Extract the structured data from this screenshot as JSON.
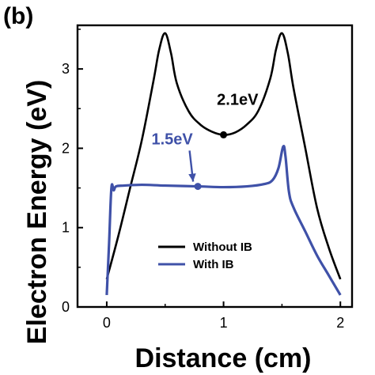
{
  "chart_data": {
    "type": "line",
    "panel_label": "(b)",
    "xlabel": "Distance (cm)",
    "ylabel": "Electron Energy (eV)",
    "xlim": [
      -0.25,
      2.1
    ],
    "ylim": [
      0,
      3.55
    ],
    "xticks": [
      0,
      1,
      2
    ],
    "yticks": [
      0,
      1,
      2,
      3
    ],
    "x_tick_labels": [
      "0",
      "1",
      "2"
    ],
    "y_tick_labels": [
      "0",
      "1",
      "2",
      "3"
    ],
    "grid": false,
    "legend": {
      "placement": "lower-center",
      "entries": [
        "Without IB",
        "With IB"
      ]
    },
    "series": [
      {
        "name": "Without IB",
        "color": "#000000",
        "x": [
          0.0,
          0.1,
          0.2,
          0.3,
          0.4,
          0.45,
          0.5,
          0.55,
          0.6,
          0.7,
          0.8,
          0.9,
          1.0,
          1.1,
          1.2,
          1.3,
          1.4,
          1.45,
          1.5,
          1.55,
          1.6,
          1.7,
          1.8,
          1.9,
          2.0
        ],
        "y": [
          0.35,
          0.9,
          1.5,
          2.1,
          2.85,
          3.25,
          3.45,
          3.2,
          2.82,
          2.47,
          2.3,
          2.21,
          2.17,
          2.2,
          2.3,
          2.48,
          2.88,
          3.25,
          3.45,
          3.2,
          2.75,
          2.0,
          1.25,
          0.75,
          0.35
        ]
      },
      {
        "name": "With IB",
        "color": "#3f51a8",
        "x": [
          0.0,
          0.02,
          0.04,
          0.06,
          0.08,
          0.15,
          0.3,
          0.5,
          0.78,
          1.0,
          1.2,
          1.35,
          1.42,
          1.47,
          1.51,
          1.53,
          1.56,
          1.6,
          1.7,
          1.8,
          1.9,
          2.0
        ],
        "y": [
          0.15,
          0.8,
          1.5,
          1.47,
          1.52,
          1.53,
          1.54,
          1.53,
          1.52,
          1.51,
          1.52,
          1.55,
          1.6,
          1.75,
          2.02,
          1.9,
          1.45,
          1.25,
          0.95,
          0.65,
          0.4,
          0.15
        ]
      }
    ],
    "markers": [
      {
        "series": "Without IB",
        "x": 1.0,
        "y": 2.17
      },
      {
        "series": "With IB",
        "x": 0.78,
        "y": 1.52
      }
    ],
    "annotations": [
      {
        "text": "2.1eV",
        "color": "#000000",
        "x": 1.12,
        "y": 2.55
      },
      {
        "text": "1.5eV",
        "color": "#3f51a8",
        "x": 0.56,
        "y": 2.05
      }
    ]
  }
}
